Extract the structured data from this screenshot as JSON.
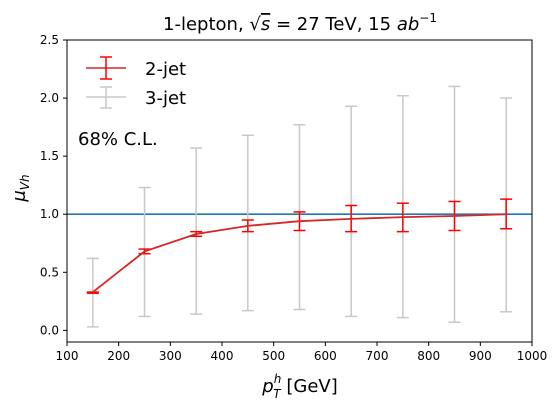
{
  "chart_data": {
    "type": "line",
    "title": "1-lepton, √s = 27 TeV, 15 ab⁻¹",
    "title_parts": {
      "prefix": "1-lepton, ",
      "sqrt_symbol": "√",
      "sqrt_arg": "s",
      "middle": " = 27 TeV, 15 ",
      "unit_base": "ab",
      "unit_exp": "−1"
    },
    "xlabel": "p_T^h [GeV]",
    "xlabel_parts": {
      "base": "p",
      "sup": "h",
      "sub": "T",
      "suffix": " [GeV]"
    },
    "ylabel": "μ_Vh",
    "ylabel_parts": {
      "base": "μ",
      "sub": "Vh"
    },
    "xlim": [
      100,
      1000
    ],
    "ylim": [
      -0.1,
      2.5
    ],
    "xticks": [
      100,
      200,
      300,
      400,
      500,
      600,
      700,
      800,
      900,
      1000
    ],
    "yticks": [
      0.0,
      0.5,
      1.0,
      1.5,
      2.0,
      2.5
    ],
    "ytick_labels": [
      "0.0",
      "0.5",
      "1.0",
      "1.5",
      "2.0",
      "2.5"
    ],
    "annotation": "68% C.L.",
    "reference_line": {
      "y": 1.0,
      "color": "#1f77b4"
    },
    "legend_position": "top-left",
    "grid": false,
    "series": [
      {
        "name": "2-jet",
        "color": "#d62728",
        "errbar_color": "#ff0000",
        "x": [
          150,
          250,
          350,
          450,
          550,
          650,
          750,
          850,
          950
        ],
        "y": [
          0.33,
          0.68,
          0.83,
          0.9,
          0.94,
          0.96,
          0.975,
          0.985,
          1.0
        ],
        "err_low": [
          0.32,
          0.66,
          0.81,
          0.85,
          0.86,
          0.85,
          0.85,
          0.86,
          0.875
        ],
        "err_high": [
          0.33,
          0.7,
          0.85,
          0.95,
          1.02,
          1.075,
          1.095,
          1.11,
          1.13
        ]
      },
      {
        "name": "3-jet",
        "color": "#c8c8c8",
        "errbar_color": "#c8c8c8",
        "x": [
          150,
          250,
          350,
          450,
          550,
          650,
          750,
          850,
          950
        ],
        "y": [
          0.33,
          0.68,
          0.83,
          0.9,
          0.94,
          0.96,
          0.975,
          0.985,
          1.0
        ],
        "err_low": [
          0.03,
          0.12,
          0.14,
          0.17,
          0.18,
          0.12,
          0.11,
          0.07,
          0.16
        ],
        "err_high": [
          0.62,
          1.23,
          1.57,
          1.68,
          1.77,
          1.93,
          2.02,
          2.1,
          2.0
        ]
      }
    ]
  }
}
